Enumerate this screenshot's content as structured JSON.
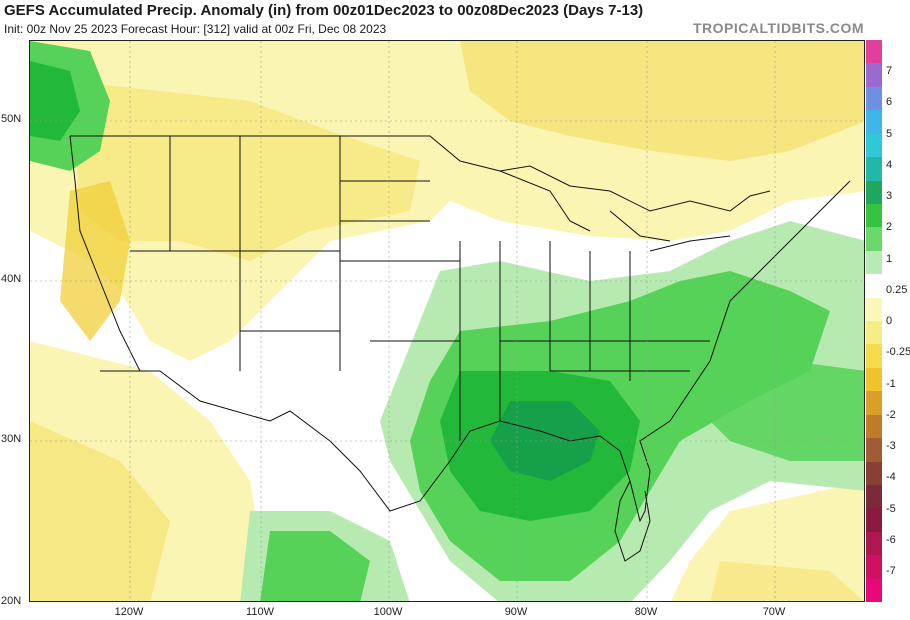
{
  "header": {
    "title": "GEFS Accumulated Precip. Anomaly (in) from 00z01Dec2023 to 00z08Dec2023 (Days 7-13)",
    "subtitle": "Init: 00z Nov 25 2023   Forecast Hour: [312]   valid at 00z Fri, Dec 08 2023",
    "brand": "TROPICALTIDBITS.COM"
  },
  "axes": {
    "lat_labels": [
      "50N",
      "40N",
      "30N",
      "20N"
    ],
    "lon_labels": [
      "120W",
      "110W",
      "100W",
      "90W",
      "80W",
      "70W"
    ]
  },
  "colorbar": {
    "labels": [
      "7",
      "6",
      "5",
      "4",
      "3",
      "2",
      "1",
      "0.25",
      "0",
      "-0.25",
      "-1",
      "-2",
      "-3",
      "-4",
      "-5",
      "-6",
      "-7"
    ],
    "colors": [
      "#e0409c",
      "#9a6ad0",
      "#6f8fe0",
      "#3fb6e8",
      "#2fc8d6",
      "#22b8a8",
      "#1ea85e",
      "#34c442",
      "#6ad86a",
      "#b4ecb4",
      "#ffffff",
      "#fcf6b8",
      "#f8ec88",
      "#f4dc4c",
      "#eec42e",
      "#d8a028",
      "#c07a2c",
      "#a05c34",
      "#884034",
      "#7a2a38",
      "#8a1a40",
      "#b01650",
      "#d01060",
      "#e8087a"
    ]
  },
  "map": {
    "region": "Continental United States",
    "colors": {
      "dry_light": "#fbf5b4",
      "dry_mid": "#f6e57a",
      "dry_strong": "#f0cf3a",
      "wet_light": "#b6eab0",
      "wet_mid": "#56d258",
      "wet_strong": "#22b83a",
      "wet_core": "#17a04a"
    }
  }
}
